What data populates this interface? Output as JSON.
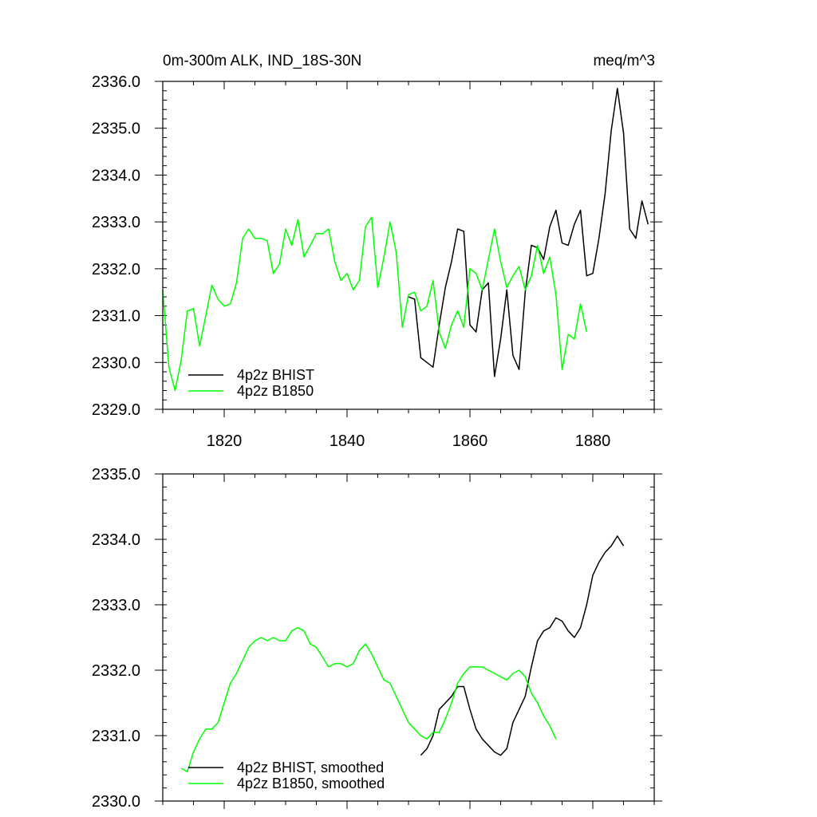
{
  "chart_data": [
    {
      "type": "line",
      "title_left": "0m-300m ALK, IND_18S-30N",
      "title_right": "meq/m^3",
      "xlim": [
        1810,
        1890
      ],
      "ylim": [
        2329.0,
        2336.0
      ],
      "y_ticks": [
        "2329.0",
        "2330.0",
        "2331.0",
        "2332.0",
        "2333.0",
        "2334.0",
        "2335.0",
        "2336.0"
      ],
      "x_ticks": [
        "1820",
        "1840",
        "1860",
        "1880"
      ],
      "legend": "bottom-left",
      "series": [
        {
          "name": "4p2z BHIST",
          "color": "#000000",
          "x0": 1850,
          "values": [
            2331.4,
            2331.35,
            2330.1,
            2330.0,
            2329.9,
            2330.8,
            2331.6,
            2332.15,
            2332.85,
            2332.8,
            2330.8,
            2330.65,
            2331.55,
            2331.7,
            2329.7,
            2330.5,
            2331.55,
            2330.15,
            2329.85,
            2331.5,
            2332.5,
            2332.45,
            2332.2,
            2332.9,
            2333.25,
            2332.55,
            2332.5,
            2332.95,
            2333.25,
            2331.85,
            2331.9,
            2332.65,
            2333.6,
            2334.95,
            2335.85,
            2334.9,
            2332.85,
            2332.65,
            2333.45,
            2332.95
          ]
        },
        {
          "name": "4p2z B1850",
          "color": "#00ff00",
          "x0": 1810,
          "values": [
            2331.55,
            2329.9,
            2329.4,
            2330.05,
            2331.1,
            2331.15,
            2330.35,
            2331.0,
            2331.65,
            2331.35,
            2331.2,
            2331.25,
            2331.7,
            2332.65,
            2332.85,
            2332.65,
            2332.65,
            2332.6,
            2331.9,
            2332.1,
            2332.85,
            2332.5,
            2333.05,
            2332.25,
            2332.5,
            2332.75,
            2332.75,
            2332.85,
            2332.15,
            2331.75,
            2331.9,
            2331.55,
            2331.75,
            2332.9,
            2333.1,
            2331.6,
            2332.25,
            2333.0,
            2332.35,
            2330.75,
            2331.45,
            2331.5,
            2331.1,
            2331.2,
            2331.75,
            2330.65,
            2330.3,
            2330.8,
            2331.1,
            2330.75,
            2332.0,
            2331.9,
            2331.55,
            2332.2,
            2332.85,
            2332.15,
            2331.6,
            2331.85,
            2332.05,
            2331.55,
            2331.85,
            2332.5,
            2331.9,
            2332.25,
            2331.45,
            2329.85,
            2330.6,
            2330.5,
            2331.25,
            2330.65
          ]
        }
      ]
    },
    {
      "type": "line",
      "xlim": [
        1810,
        1890
      ],
      "ylim": [
        2330.0,
        2335.0
      ],
      "y_ticks": [
        "2330.0",
        "2331.0",
        "2332.0",
        "2333.0",
        "2334.0",
        "2335.0"
      ],
      "legend": "bottom-left",
      "series": [
        {
          "name": "4p2z BHIST, smoothed",
          "color": "#000000",
          "x0": 1852,
          "values": [
            2330.7,
            2330.8,
            2331.0,
            2331.4,
            2331.5,
            2331.6,
            2331.75,
            2331.75,
            2331.4,
            2331.1,
            2330.95,
            2330.85,
            2330.75,
            2330.7,
            2330.8,
            2331.2,
            2331.4,
            2331.6,
            2332.05,
            2332.45,
            2332.6,
            2332.65,
            2332.8,
            2332.75,
            2332.6,
            2332.5,
            2332.65,
            2333.0,
            2333.45,
            2333.65,
            2333.8,
            2333.9,
            2334.05,
            2333.9
          ]
        },
        {
          "name": "4p2z B1850, smoothed",
          "color": "#00ff00",
          "x0": 1813,
          "values": [
            2330.5,
            2330.45,
            2330.75,
            2330.95,
            2331.1,
            2331.1,
            2331.2,
            2331.5,
            2331.8,
            2331.95,
            2332.15,
            2332.35,
            2332.45,
            2332.5,
            2332.45,
            2332.5,
            2332.45,
            2332.45,
            2332.6,
            2332.65,
            2332.6,
            2332.4,
            2332.35,
            2332.2,
            2332.05,
            2332.1,
            2332.1,
            2332.05,
            2332.1,
            2332.3,
            2332.4,
            2332.25,
            2332.05,
            2331.85,
            2331.8,
            2331.6,
            2331.4,
            2331.2,
            2331.1,
            2331.0,
            2330.95,
            2331.05,
            2331.05,
            2331.25,
            2331.5,
            2331.8,
            2331.95,
            2332.05,
            2332.05,
            2332.05,
            2332.0,
            2331.95,
            2331.9,
            2331.85,
            2331.95,
            2332.0,
            2331.9,
            2331.65,
            2331.5,
            2331.3,
            2331.15,
            2330.95
          ]
        }
      ]
    }
  ]
}
